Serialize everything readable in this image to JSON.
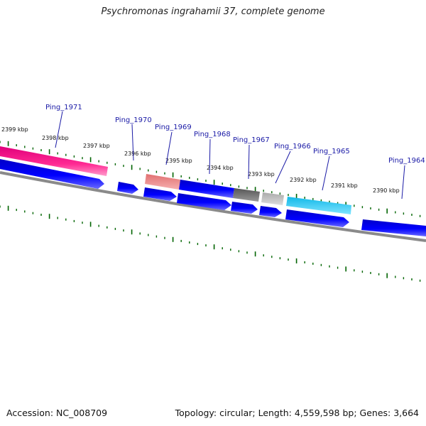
{
  "title": "Psychromonas ingrahamii 37, complete genome",
  "footer": {
    "accession": "Accession: NC_008709",
    "summary": "Topology: circular; Length: 4,559,598 bp; Genes: 3,664"
  },
  "kbp_labels": [
    "2399 kbp",
    "2398 kbp",
    "2397 kbp",
    "2396 kbp",
    "2395 kbp",
    "2394 kbp",
    "2393 kbp",
    "2392 kbp",
    "2391 kbp",
    "2390 kbp"
  ],
  "gene_labels": [
    "Ping_1971",
    "Ping_1970",
    "Ping_1969",
    "Ping_1968",
    "Ping_1967",
    "Ping_1966",
    "Ping_1965",
    "Ping_1964"
  ],
  "colors": {
    "rrna": "#ff1a8c",
    "cds": "#0000ee",
    "pseudo_salmon": "#f08080",
    "gray_dark": "#666666",
    "gray_light": "#bbbbbb",
    "trna_cyan": "#22ccf5",
    "ticks": "#006400",
    "backbone": "#888888",
    "label": "#1a1aa6"
  }
}
